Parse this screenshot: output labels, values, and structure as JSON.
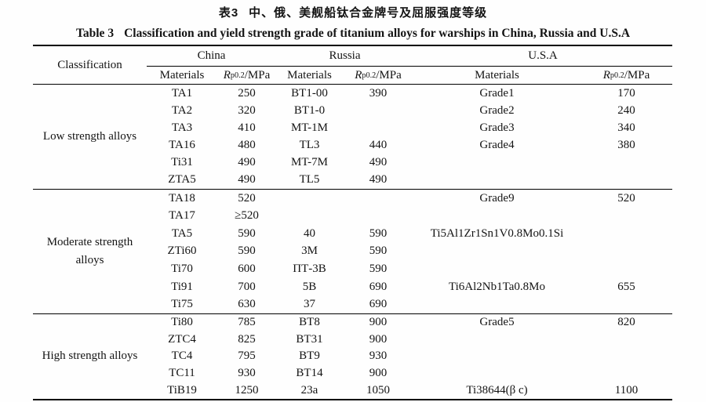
{
  "titles": {
    "zh_label": "表3",
    "zh_text": "中、俄、美舰船钛合金牌号及屈服强度等级",
    "en_label": "Table 3",
    "en_text": "Classification and yield strength grade of titanium alloys for warships in China, Russia and U.S.A"
  },
  "header": {
    "classification": "Classification",
    "groups": [
      "China",
      "Russia",
      "U.S.A"
    ],
    "materials": "Materials",
    "rp": {
      "r": "R",
      "sub": "p0.2",
      "rest": "/MPa"
    }
  },
  "sections": [
    {
      "label": [
        "Low strength alloys"
      ],
      "rows": [
        {
          "cells": [
            "TA1",
            "250",
            "BT1-00",
            "390",
            "Grade1",
            "170"
          ]
        },
        {
          "cells": [
            "TA2",
            "320",
            "BT1-0",
            "",
            "Grade2",
            "240"
          ]
        },
        {
          "cells": [
            "TA3",
            "410",
            "MT-1M",
            "",
            "Grade3",
            "340"
          ]
        },
        {
          "cells": [
            "TA16",
            "480",
            "TL3",
            "440",
            "Grade4",
            "380"
          ]
        },
        {
          "cells": [
            "Ti31",
            "490",
            "MT-7M",
            "490",
            "",
            ""
          ]
        },
        {
          "cells": [
            "ZTA5",
            "490",
            "TL5",
            "490",
            "",
            ""
          ]
        }
      ]
    },
    {
      "label": [
        "Moderate strength",
        "alloys"
      ],
      "rows": [
        {
          "cells": [
            "TA18",
            "520",
            "",
            "",
            "Grade9",
            "520"
          ]
        },
        {
          "cells": [
            "TA17",
            "≥520",
            "",
            "",
            "",
            ""
          ]
        },
        {
          "cells": [
            "TA5",
            "590",
            "40",
            "590",
            "Ti5Al1Zr1Sn1V0.8Mo0.1Si",
            ""
          ]
        },
        {
          "cells": [
            "ZTi60",
            "590",
            "3M",
            "590",
            "",
            ""
          ]
        },
        {
          "cells": [
            "Ti70",
            "600",
            "ПТ-3В",
            "590",
            "",
            ""
          ]
        },
        {
          "cells": [
            "Ti91",
            "700",
            "5B",
            "690",
            "Ti6Al2Nb1Ta0.8Mo",
            "655"
          ]
        },
        {
          "cells": [
            "Ti75",
            "630",
            "37",
            "690",
            "",
            ""
          ]
        }
      ]
    },
    {
      "label": [
        "High strength alloys"
      ],
      "rows": [
        {
          "cells": [
            "Ti80",
            "785",
            "BT8",
            "900",
            "Grade5",
            "820"
          ]
        },
        {
          "cells": [
            "ZTC4",
            "825",
            "BT31",
            "900",
            "",
            ""
          ]
        },
        {
          "cells": [
            "TC4",
            "795",
            "BT9",
            "930",
            "",
            ""
          ]
        },
        {
          "cells": [
            "TC11",
            "930",
            "BT14",
            "900",
            "",
            ""
          ]
        },
        {
          "cells": [
            "TiB19",
            "1250",
            "23a",
            "1050",
            "Ti38644(β c)",
            "1100"
          ]
        }
      ]
    }
  ]
}
